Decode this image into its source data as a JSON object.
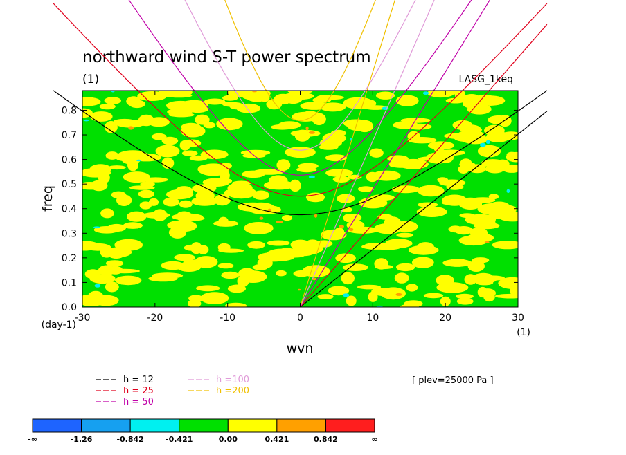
{
  "chart_data": {
    "type": "heatmap",
    "title": "northward wind S-T power spectrum",
    "title_units": "(1)",
    "run_label": "LASG_1keq",
    "xlabel": "wvn",
    "xlabel_units": "(1)",
    "ylabel": "freq",
    "ylabel_units": "(day-1)",
    "xlim": [
      -30,
      30
    ],
    "ylim": [
      0.0,
      0.88
    ],
    "xticks": [
      "-30",
      "-20",
      "-10",
      "0",
      "10",
      "20",
      "30"
    ],
    "yticks": [
      "0.0",
      "0.1",
      "0.2",
      "0.3",
      "0.4",
      "0.5",
      "0.6",
      "0.7",
      "0.8"
    ],
    "level_note": "[ plev=25000 Pa ]",
    "dispersion_curves": [
      {
        "label": "h = 12",
        "color": "#000000",
        "h": 12
      },
      {
        "label": "h = 25",
        "color": "#e0001c",
        "h": 25
      },
      {
        "label": "h = 50",
        "color": "#c000a8",
        "h": 50
      },
      {
        "label": "h =100",
        "color": "#e09ad8",
        "h": 100
      },
      {
        "label": "h =200",
        "color": "#f0c000",
        "h": 200
      }
    ],
    "colorbar": {
      "labels": [
        "-∞",
        "-1.26",
        "-0.842",
        "-0.421",
        "0.00",
        "0.421",
        "0.842",
        "∞"
      ],
      "colors": [
        "#1e64ff",
        "#16a0f0",
        "#00f0f0",
        "#00e000",
        "#ffff00",
        "#ffa000",
        "#ff1e1e"
      ]
    }
  }
}
